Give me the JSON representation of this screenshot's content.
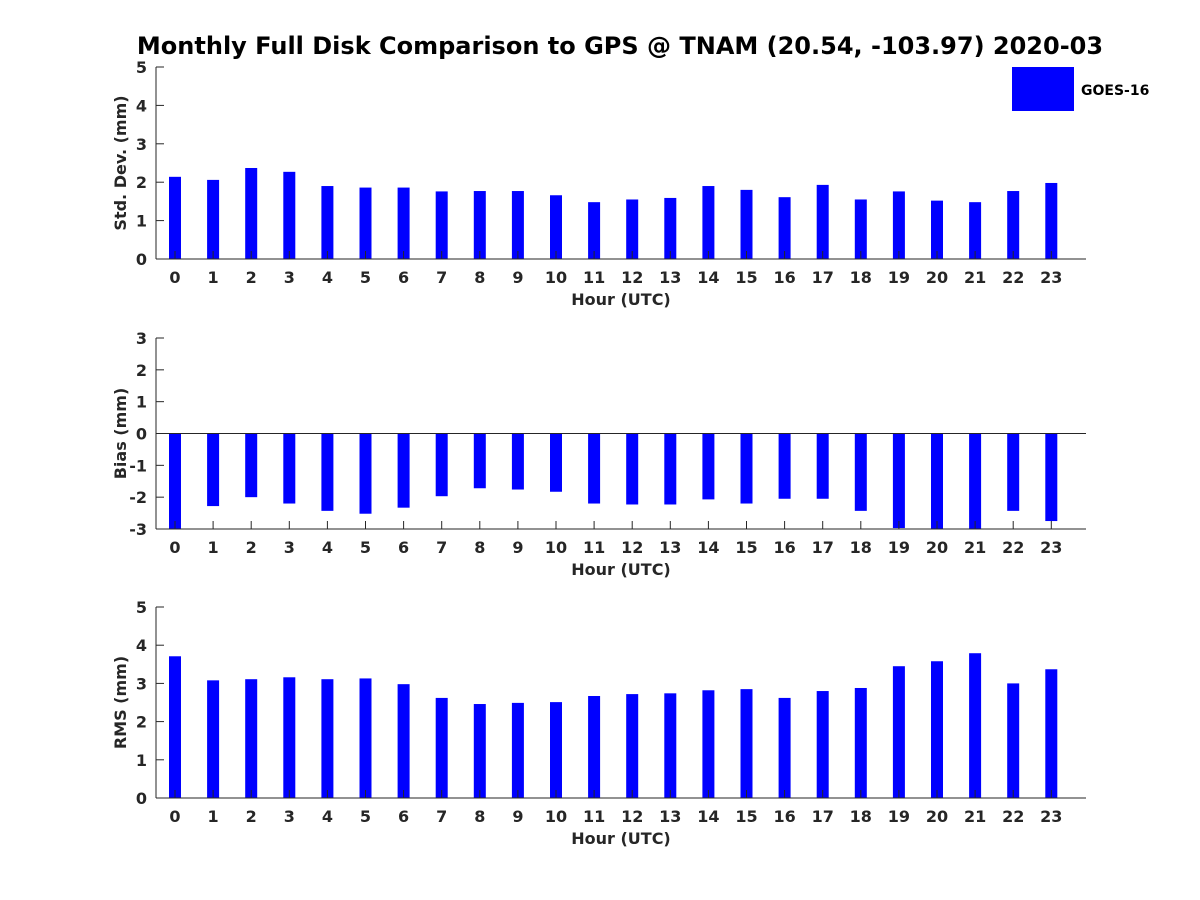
{
  "title": "Monthly Full Disk Comparison to GPS @ TNAM (20.54, -103.97) 2020-03",
  "legend": {
    "label": "GOES-16",
    "color": "#0000ff",
    "placement": "top-right"
  },
  "chart_data": [
    {
      "type": "bar",
      "xlabel": "Hour (UTC)",
      "ylabel": "Std. Dev. (mm)",
      "ylim": [
        0,
        5
      ],
      "yticks": [
        0,
        1,
        2,
        3,
        4,
        5
      ],
      "categories": [
        "0",
        "1",
        "2",
        "3",
        "4",
        "5",
        "6",
        "7",
        "8",
        "9",
        "10",
        "11",
        "12",
        "13",
        "14",
        "15",
        "16",
        "17",
        "18",
        "19",
        "20",
        "21",
        "22",
        "23"
      ],
      "series": [
        {
          "name": "GOES-16",
          "color": "#0000ff",
          "values": [
            2.14,
            2.06,
            2.37,
            2.27,
            1.9,
            1.86,
            1.86,
            1.76,
            1.77,
            1.77,
            1.66,
            1.48,
            1.55,
            1.59,
            1.9,
            1.8,
            1.61,
            1.93,
            1.55,
            1.76,
            1.52,
            1.48,
            1.77,
            1.98
          ]
        }
      ],
      "grid": false
    },
    {
      "type": "bar",
      "xlabel": "Hour (UTC)",
      "ylabel": "Bias (mm)",
      "ylim": [
        -3,
        3
      ],
      "yticks": [
        -3,
        -2,
        -1,
        0,
        1,
        2,
        3
      ],
      "categories": [
        "0",
        "1",
        "2",
        "3",
        "4",
        "5",
        "6",
        "7",
        "8",
        "9",
        "10",
        "11",
        "12",
        "13",
        "14",
        "15",
        "16",
        "17",
        "18",
        "19",
        "20",
        "21",
        "22",
        "23"
      ],
      "series": [
        {
          "name": "GOES-16",
          "color": "#0000ff",
          "values": [
            -3.0,
            -2.28,
            -2.0,
            -2.2,
            -2.43,
            -2.52,
            -2.33,
            -1.97,
            -1.72,
            -1.76,
            -1.83,
            -2.2,
            -2.23,
            -2.23,
            -2.07,
            -2.2,
            -2.05,
            -2.05,
            -2.43,
            -2.97,
            -3.0,
            -3.0,
            -2.43,
            -2.75
          ]
        }
      ],
      "grid": false
    },
    {
      "type": "bar",
      "xlabel": "Hour (UTC)",
      "ylabel": "RMS (mm)",
      "ylim": [
        0,
        5
      ],
      "yticks": [
        0,
        1,
        2,
        3,
        4,
        5
      ],
      "categories": [
        "0",
        "1",
        "2",
        "3",
        "4",
        "5",
        "6",
        "7",
        "8",
        "9",
        "10",
        "11",
        "12",
        "13",
        "14",
        "15",
        "16",
        "17",
        "18",
        "19",
        "20",
        "21",
        "22",
        "23"
      ],
      "series": [
        {
          "name": "GOES-16",
          "color": "#0000ff",
          "values": [
            3.71,
            3.08,
            3.11,
            3.16,
            3.11,
            3.13,
            2.98,
            2.62,
            2.46,
            2.49,
            2.51,
            2.67,
            2.72,
            2.74,
            2.82,
            2.85,
            2.62,
            2.8,
            2.88,
            3.45,
            3.58,
            3.79,
            3.0,
            3.37
          ]
        }
      ],
      "grid": false
    }
  ]
}
